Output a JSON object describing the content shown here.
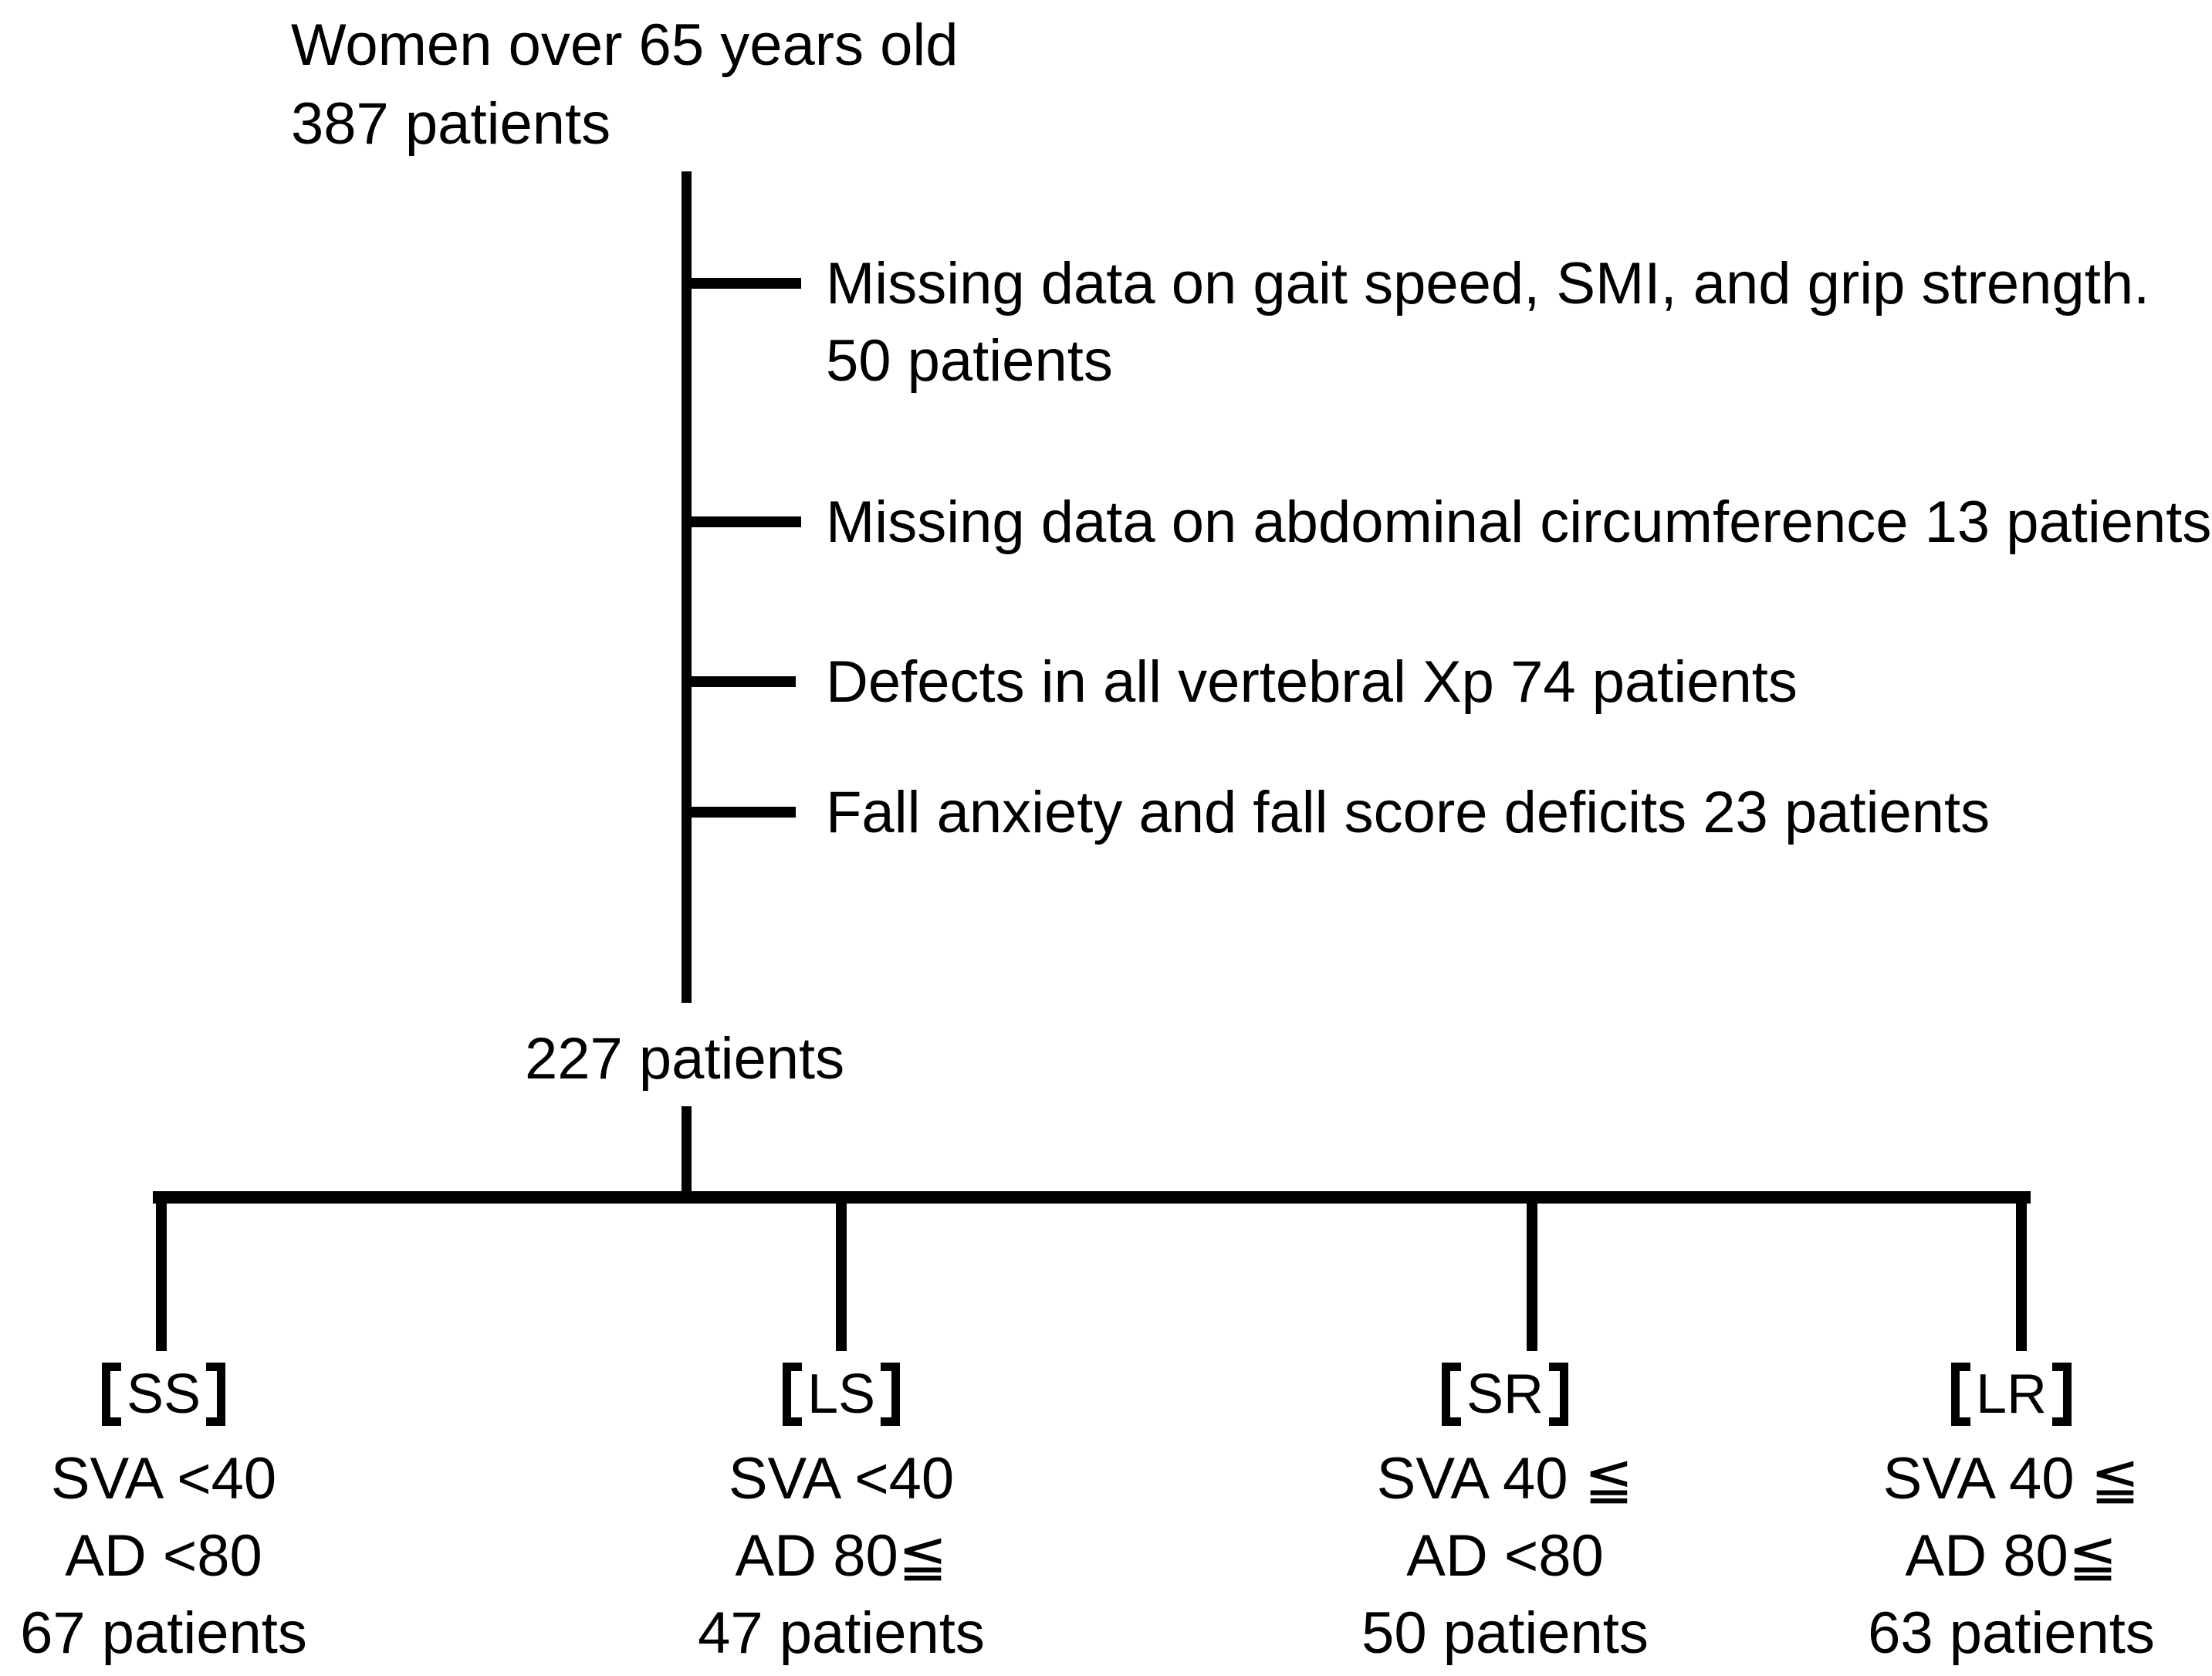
{
  "diagram": {
    "root": {
      "line1": "Women over 65 years old",
      "line2": "387 patients"
    },
    "exclusions": [
      {
        "text": "Missing data on gait speed, SMI, and grip strength.",
        "count_line": "50 patients"
      },
      {
        "text": "Missing data on abdominal circumference 13 patients"
      },
      {
        "text": "Defects in all vertebral Xp 74 patients"
      },
      {
        "text": "Fall anxiety and fall score deficits 23 patients"
      }
    ],
    "included_count": "227 patients",
    "groups": [
      {
        "label": "SS",
        "criterion1": "SVA <40",
        "criterion2": "AD <80",
        "count": "67 patients"
      },
      {
        "label": "LS",
        "criterion1": "SVA <40",
        "criterion2": "AD 80≦",
        "count": "47 patients"
      },
      {
        "label": "SR",
        "criterion1": "SVA 40 ≦",
        "criterion2": "AD <80",
        "count": "50 patients"
      },
      {
        "label": "LR",
        "criterion1": "SVA 40 ≦",
        "criterion2": "AD 80≦",
        "count": "63 patients"
      }
    ],
    "colors": {
      "foreground": "#000000",
      "background": "#ffffff"
    }
  }
}
